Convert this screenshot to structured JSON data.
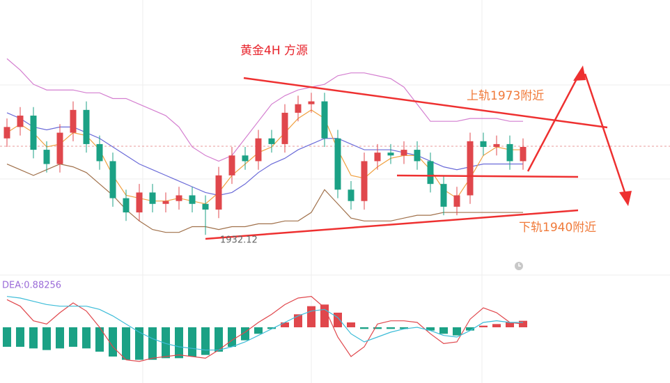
{
  "chart_data": {
    "type": "candlestick",
    "title": "黄金4H  方源",
    "annotations": [
      "上轨1973附近",
      "下轨1940附近"
    ],
    "ylim": [
      1918,
      2014.6
    ],
    "up_color": "#e0474c",
    "down_color": "#1ba185",
    "open": [
      1966,
      1970,
      1974,
      1962,
      1957,
      1968,
      1976,
      1964,
      1958,
      1945,
      1940,
      1947,
      1943,
      1944,
      1946,
      1943,
      1941,
      1953,
      1960,
      1958,
      1966,
      1964,
      1975,
      1978,
      1979,
      1966,
      1948,
      1944,
      1958,
      1961,
      1960,
      1962,
      1958,
      1950,
      1942,
      1946,
      1965,
      1963,
      1964,
      1958
    ],
    "high": [
      1973,
      1977,
      1977,
      1965,
      1971,
      1979,
      1979,
      1967,
      1961,
      1948,
      1950,
      1950,
      1947,
      1949,
      1949,
      1946,
      1956,
      1963,
      1963,
      1969,
      1969,
      1978,
      1981,
      1982,
      1982,
      1969,
      1951,
      1961,
      1964,
      1964,
      1965,
      1965,
      1961,
      1953,
      1949,
      1968,
      1968,
      1967,
      1967,
      1966
    ],
    "low": [
      1963,
      1967,
      1959,
      1954,
      1954,
      1965,
      1961,
      1955,
      1942,
      1937,
      1937,
      1940,
      1940,
      1941,
      1940,
      1932.12,
      1938,
      1950,
      1955,
      1955,
      1961,
      1961,
      1972,
      1975,
      1963,
      1945,
      1941,
      1941,
      1955,
      1957,
      1957,
      1955,
      1947,
      1939,
      1939,
      1943,
      1960,
      1960,
      1955,
      1955
    ],
    "close": [
      1970,
      1974,
      1962,
      1957,
      1968,
      1976,
      1964,
      1958,
      1945,
      1940,
      1947,
      1943,
      1944,
      1946,
      1943,
      1941,
      1953,
      1960,
      1958,
      1966,
      1964,
      1975,
      1978,
      1979,
      1966,
      1948,
      1944,
      1958,
      1961,
      1960,
      1962,
      1958,
      1950,
      1942,
      1946,
      1965,
      1963,
      1964,
      1958,
      1963
    ],
    "series": [
      {
        "color": "#d47fd0",
        "values": [
          1994,
          1990,
          1985,
          1983,
          1983,
          1983,
          1982,
          1982,
          1980,
          1980,
          1978,
          1976,
          1974,
          1970,
          1963,
          1960,
          1958,
          1960,
          1966,
          1972,
          1978,
          1981,
          1983,
          1984,
          1985,
          1988,
          1989,
          1989,
          1988,
          1987,
          1984,
          1978,
          1972,
          1972,
          1972,
          1973,
          1973,
          1973,
          1972,
          1972
        ]
      },
      {
        "color": "#a0704a",
        "values": [
          1957,
          1955,
          1953,
          1955,
          1957,
          1956,
          1954,
          1950,
          1946,
          1941,
          1937,
          1934,
          1933,
          1933,
          1935,
          1935,
          1934,
          1935,
          1935,
          1936,
          1936,
          1937,
          1937,
          1940,
          1948,
          1943,
          1938,
          1937,
          1937,
          1937,
          1938,
          1939,
          1939,
          1940,
          1940,
          1940,
          1940,
          1940,
          1940,
          1940
        ]
      },
      {
        "color": "#6a6ad8",
        "values": [
          1975,
          1973,
          1970,
          1969,
          1970,
          1970,
          1968,
          1966,
          1963,
          1960,
          1957,
          1955,
          1953,
          1951,
          1949,
          1947,
          1946,
          1947,
          1950,
          1954,
          1957,
          1959,
          1962,
          1964,
          1966,
          1966,
          1964,
          1962,
          1962,
          1962,
          1961,
          1960,
          1958,
          1956,
          1955,
          1956,
          1957,
          1957,
          1957,
          1957
        ]
      },
      {
        "color": "#f0a040",
        "values": [
          1968,
          1971,
          1968,
          1963,
          1964,
          1968,
          1967,
          1962,
          1953,
          1946,
          1945,
          1944,
          1944,
          1945,
          1944,
          1943,
          1947,
          1953,
          1957,
          1961,
          1963,
          1968,
          1973,
          1976,
          1973,
          1962,
          1953,
          1952,
          1956,
          1959,
          1960,
          1960,
          1955,
          1948,
          1945,
          1952,
          1960,
          1963,
          1962,
          1962
        ]
      }
    ],
    "macd": {
      "title": "DEA:0.88256",
      "ylim": [
        -3,
        3
      ],
      "histogram": [
        -1.2,
        -1.2,
        -1.3,
        -1.4,
        -1.3,
        -1.2,
        -1.3,
        -1.5,
        -1.8,
        -2.0,
        -2.0,
        -2.0,
        -1.9,
        -1.9,
        -1.8,
        -1.7,
        -1.5,
        -1.2,
        -0.8,
        -0.4,
        -0.1,
        0.3,
        0.8,
        1.3,
        1.4,
        0.9,
        0.3,
        -0.1,
        -0.1,
        -0.1,
        -0.1,
        0,
        -0.2,
        -0.4,
        -0.5,
        -0.2,
        0.1,
        0.2,
        0.3,
        0.4
      ],
      "series": [
        {
          "color": "#e0474c",
          "values": [
            1.7,
            1.3,
            0.4,
            0.2,
            0.9,
            1.5,
            1.0,
            0.0,
            -1.2,
            -2.0,
            -2.1,
            -1.9,
            -1.8,
            -1.7,
            -1.8,
            -1.9,
            -1.4,
            -0.8,
            -0.3,
            0.3,
            0.8,
            1.4,
            1.8,
            1.9,
            1.2,
            -0.6,
            -1.8,
            -1.2,
            0.2,
            0.4,
            0.4,
            0.3,
            -0.4,
            -1.0,
            -0.9,
            0.5,
            1.2,
            0.9,
            0.3,
            0.2
          ]
        },
        {
          "color": "#3cbcd8",
          "values": [
            1.9,
            1.8,
            1.6,
            1.4,
            1.3,
            1.3,
            1.3,
            1.1,
            0.7,
            0.2,
            -0.3,
            -0.7,
            -1.0,
            -1.2,
            -1.3,
            -1.4,
            -1.4,
            -1.2,
            -0.9,
            -0.5,
            -0.1,
            0.3,
            0.7,
            1.0,
            1.1,
            0.6,
            -0.4,
            -0.9,
            -0.6,
            -0.3,
            -0.1,
            0.0,
            -0.2,
            -0.5,
            -0.6,
            -0.2,
            0.3,
            0.4,
            0.3,
            0.3
          ]
        }
      ]
    }
  }
}
